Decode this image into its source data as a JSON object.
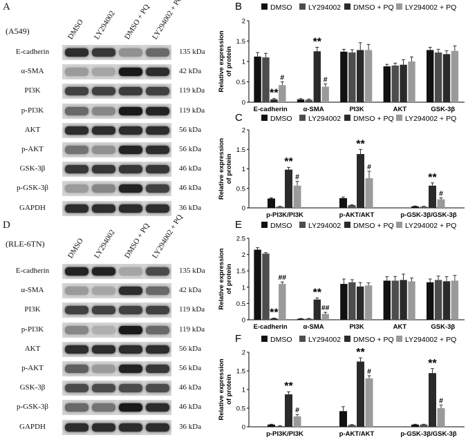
{
  "figure": {
    "panel_labels": [
      "A",
      "B",
      "C",
      "D",
      "E",
      "F"
    ],
    "groups": [
      "DMSO",
      "LY294002",
      "DMSO + PQ",
      "LY294002 + PQ"
    ],
    "colors": {
      "DMSO": "#111111",
      "LY294002": "#4d4d4d",
      "DMSO + PQ": "#2a2a2a",
      "LY294002 + PQ": "#9a9a9a"
    }
  },
  "blots": [
    {
      "panel": "A",
      "cell_line": "(A549)",
      "lanes": [
        "DMSO",
        "LY294002",
        "DMSO + PQ",
        "LY294002 + PQ"
      ],
      "rows": [
        {
          "protein": "E-cadherin",
          "kda": "135 kDa",
          "intensity": [
            0.85,
            0.8,
            0.35,
            0.55
          ]
        },
        {
          "protein": "α-SMA",
          "kda": "42 kDa",
          "intensity": [
            0.3,
            0.25,
            0.95,
            0.85
          ]
        },
        {
          "protein": "PI3K",
          "kda": "119 kDa",
          "intensity": [
            0.75,
            0.75,
            0.78,
            0.75
          ]
        },
        {
          "protein": "p-PI3K",
          "kda": "119 kDa",
          "intensity": [
            0.55,
            0.4,
            0.95,
            0.9
          ]
        },
        {
          "protein": "AKT",
          "kda": "56 kDa",
          "intensity": [
            0.85,
            0.85,
            0.85,
            0.85
          ]
        },
        {
          "protein": "p-AKT",
          "kda": "56 kDa",
          "intensity": [
            0.5,
            0.35,
            0.9,
            0.85
          ]
        },
        {
          "protein": "GSK-3β",
          "kda": "46 kDa",
          "intensity": [
            0.8,
            0.8,
            0.8,
            0.8
          ]
        },
        {
          "protein": "p-GSK-3β",
          "kda": "46 kDa",
          "intensity": [
            0.3,
            0.4,
            0.9,
            0.75
          ]
        },
        {
          "protein": "GAPDH",
          "kda": "36 kDa",
          "intensity": [
            0.85,
            0.85,
            0.85,
            0.85
          ]
        }
      ]
    },
    {
      "panel": "D",
      "cell_line": "(RLE-6TN)",
      "lanes": [
        "DMSO",
        "LY294002",
        "DMSO + PQ",
        "LY294002 + PQ"
      ],
      "rows": [
        {
          "protein": "E-cadherin",
          "kda": "135 kDa",
          "intensity": [
            0.9,
            0.9,
            0.25,
            0.7
          ]
        },
        {
          "protein": "α-SMA",
          "kda": "42 kDa",
          "intensity": [
            0.3,
            0.25,
            0.85,
            0.55
          ]
        },
        {
          "protein": "PI3K",
          "kda": "119 kDa",
          "intensity": [
            0.75,
            0.75,
            0.75,
            0.75
          ]
        },
        {
          "protein": "p-PI3K",
          "kda": "119 kDa",
          "intensity": [
            0.4,
            0.2,
            0.95,
            0.55
          ]
        },
        {
          "protein": "AKT",
          "kda": "56 kDa",
          "intensity": [
            0.85,
            0.85,
            0.85,
            0.85
          ]
        },
        {
          "protein": "p-AKT",
          "kda": "56 kDa",
          "intensity": [
            0.6,
            0.3,
            0.9,
            0.8
          ]
        },
        {
          "protein": "GSK-3β",
          "kda": "46 kDa",
          "intensity": [
            0.7,
            0.7,
            0.7,
            0.7
          ]
        },
        {
          "protein": "p-GSK-3β",
          "kda": "46 kDa",
          "intensity": [
            0.55,
            0.5,
            0.95,
            0.85
          ]
        },
        {
          "protein": "GAPDH",
          "kda": "36 kDa",
          "intensity": [
            0.85,
            0.85,
            0.85,
            0.85
          ]
        }
      ]
    }
  ],
  "chart_data": [
    {
      "panel": "B",
      "type": "bar",
      "ylabel": "Relative expression of protein",
      "ylim": [
        0,
        2
      ],
      "yticks": [
        0,
        0.5,
        1,
        1.5,
        2
      ],
      "categories": [
        "E-cadherin",
        "α-SMA",
        "PI3K",
        "AKT",
        "GSK-3β"
      ],
      "series": [
        {
          "name": "DMSO",
          "values": [
            1.12,
            0.07,
            1.24,
            0.88,
            1.28
          ],
          "errors": [
            0.1,
            0.02,
            0.06,
            0.05,
            0.07
          ]
        },
        {
          "name": "LY294002",
          "values": [
            1.1,
            0.06,
            1.22,
            0.9,
            1.22
          ],
          "errors": [
            0.1,
            0.02,
            0.07,
            0.06,
            0.08
          ]
        },
        {
          "name": "DMSO + PQ",
          "values": [
            0.07,
            1.25,
            1.28,
            0.92,
            1.18
          ],
          "errors": [
            0.02,
            0.1,
            0.18,
            0.12,
            0.08
          ]
        },
        {
          "name": "LY294002 + PQ",
          "values": [
            0.42,
            0.38,
            1.28,
            1.0,
            1.26
          ],
          "errors": [
            0.08,
            0.07,
            0.14,
            0.11,
            0.12
          ]
        }
      ],
      "annotations": [
        {
          "category": 0,
          "series": 2,
          "text": "**"
        },
        {
          "category": 0,
          "series": 3,
          "text": "#"
        },
        {
          "category": 1,
          "series": 2,
          "text": "**"
        },
        {
          "category": 1,
          "series": 3,
          "text": "#"
        }
      ],
      "legend": "top"
    },
    {
      "panel": "C",
      "type": "bar",
      "ylabel": "Relative expression of protein",
      "ylim": [
        0,
        2
      ],
      "yticks": [
        0,
        0.5,
        1,
        1.5,
        2
      ],
      "categories": [
        "p-PI3K/PI3K",
        "p-AKT/AKT",
        "p-GSK-3β/GSK-3β"
      ],
      "series": [
        {
          "name": "DMSO",
          "values": [
            0.24,
            0.25,
            0.04
          ],
          "errors": [
            0.02,
            0.03,
            0.01
          ]
        },
        {
          "name": "LY294002",
          "values": [
            0.03,
            0.07,
            0.03
          ],
          "errors": [
            0.01,
            0.01,
            0.01
          ]
        },
        {
          "name": "DMSO + PQ",
          "values": [
            0.98,
            1.38,
            0.57
          ],
          "errors": [
            0.06,
            0.12,
            0.07
          ]
        },
        {
          "name": "LY294002 + PQ",
          "values": [
            0.57,
            0.76,
            0.22
          ],
          "errors": [
            0.11,
            0.18,
            0.04
          ]
        }
      ],
      "annotations": [
        {
          "category": 0,
          "series": 2,
          "text": "**"
        },
        {
          "category": 0,
          "series": 3,
          "text": "#"
        },
        {
          "category": 1,
          "series": 2,
          "text": "**"
        },
        {
          "category": 1,
          "series": 3,
          "text": "#"
        },
        {
          "category": 2,
          "series": 2,
          "text": "**"
        },
        {
          "category": 2,
          "series": 3,
          "text": "#"
        }
      ],
      "legend": "top"
    },
    {
      "panel": "E",
      "type": "bar",
      "ylabel": "Relative expression of protein",
      "ylim": [
        0,
        2.5
      ],
      "yticks": [
        0,
        0.5,
        1,
        1.5,
        2,
        2.5
      ],
      "categories": [
        "E-cadherin",
        "α-SMA",
        "PI3K",
        "AKT",
        "GSK-3β"
      ],
      "series": [
        {
          "name": "DMSO",
          "values": [
            2.15,
            0.03,
            1.1,
            1.2,
            1.15
          ],
          "errors": [
            0.06,
            0.01,
            0.15,
            0.12,
            0.1
          ]
        },
        {
          "name": "LY294002",
          "values": [
            2.03,
            0.03,
            1.15,
            1.2,
            1.22
          ],
          "errors": [
            0.03,
            0.01,
            0.08,
            0.13,
            0.12
          ]
        },
        {
          "name": "DMSO + PQ",
          "values": [
            0.04,
            0.62,
            1.02,
            1.22,
            1.18
          ],
          "errors": [
            0.01,
            0.05,
            0.12,
            0.18,
            0.14
          ]
        },
        {
          "name": "LY294002 + PQ",
          "values": [
            1.1,
            0.18,
            1.05,
            1.18,
            1.2
          ],
          "errors": [
            0.06,
            0.05,
            0.08,
            0.1,
            0.16
          ]
        }
      ],
      "annotations": [
        {
          "category": 0,
          "series": 2,
          "text": "**"
        },
        {
          "category": 0,
          "series": 3,
          "text": "##"
        },
        {
          "category": 1,
          "series": 2,
          "text": "**"
        },
        {
          "category": 1,
          "series": 3,
          "text": "##"
        }
      ],
      "legend": "top"
    },
    {
      "panel": "F",
      "type": "bar",
      "ylabel": "Relative expression of protein",
      "ylim": [
        0,
        2
      ],
      "yticks": [
        0,
        0.5,
        1,
        1.5,
        2
      ],
      "categories": [
        "p-PI3K/PI3K",
        "p-AKT/AKT",
        "p-GSK-3β/GSK-3β"
      ],
      "series": [
        {
          "name": "DMSO",
          "values": [
            0.06,
            0.42,
            0.06
          ],
          "errors": [
            0.01,
            0.12,
            0.01
          ]
        },
        {
          "name": "LY294002",
          "values": [
            0.02,
            0.05,
            0.06
          ],
          "errors": [
            0.01,
            0.01,
            0.01
          ]
        },
        {
          "name": "DMSO + PQ",
          "values": [
            0.87,
            1.75,
            1.44
          ],
          "errors": [
            0.07,
            0.1,
            0.12
          ]
        },
        {
          "name": "LY294002 + PQ",
          "values": [
            0.28,
            1.3,
            0.5
          ],
          "errors": [
            0.05,
            0.07,
            0.08
          ]
        }
      ],
      "annotations": [
        {
          "category": 0,
          "series": 2,
          "text": "**"
        },
        {
          "category": 0,
          "series": 3,
          "text": "#"
        },
        {
          "category": 1,
          "series": 2,
          "text": "**"
        },
        {
          "category": 1,
          "series": 3,
          "text": "#"
        },
        {
          "category": 2,
          "series": 2,
          "text": "**"
        },
        {
          "category": 2,
          "series": 3,
          "text": "#"
        }
      ],
      "legend": "top"
    }
  ]
}
